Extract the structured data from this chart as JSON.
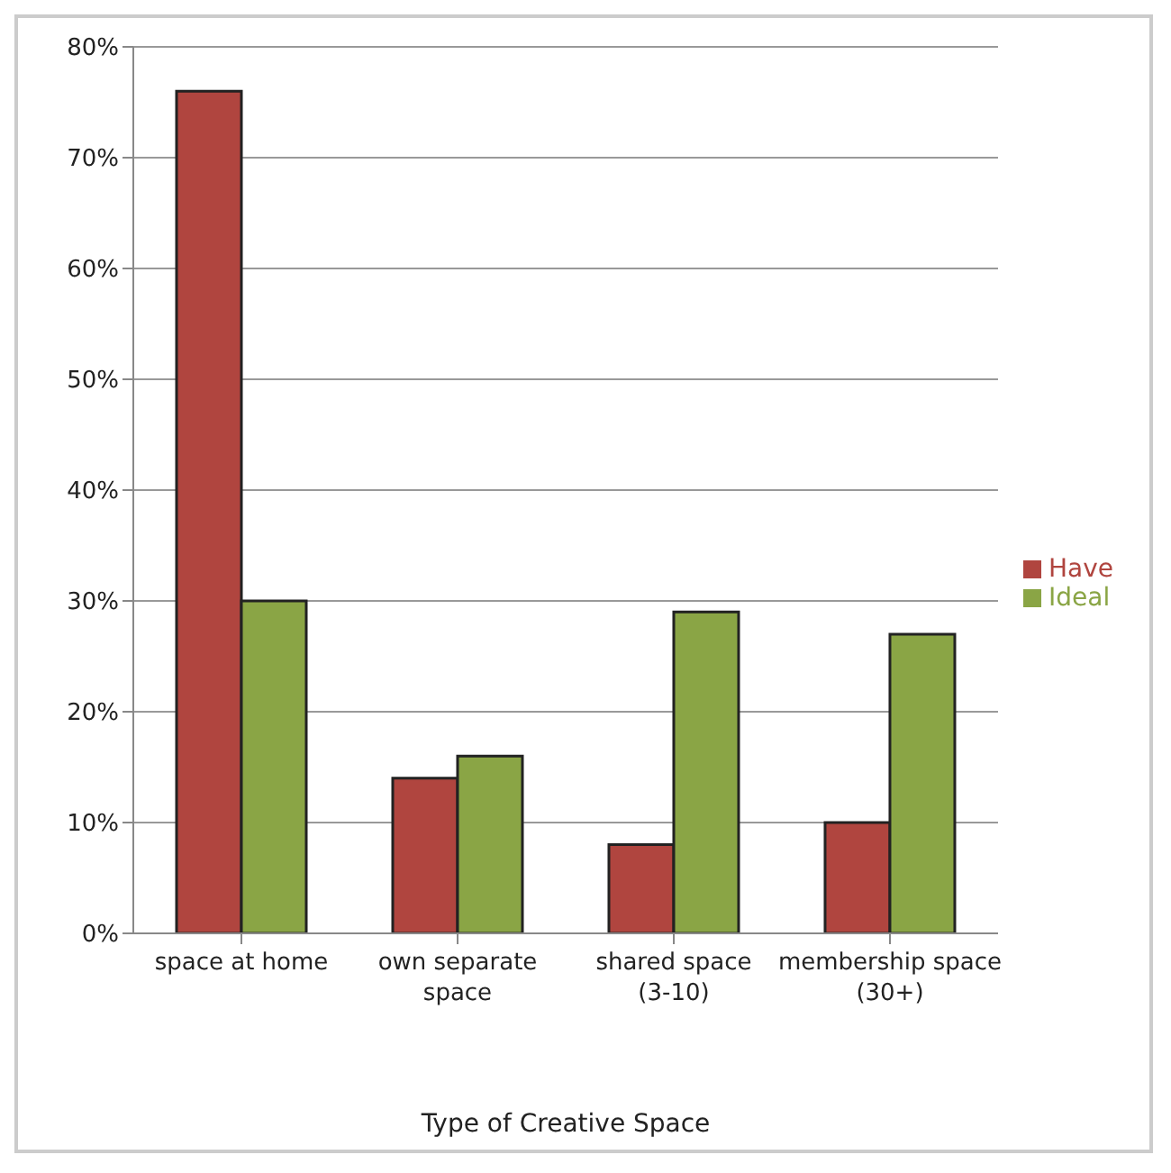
{
  "chart_data": {
    "type": "bar",
    "xlabel": "Type of Creative Space",
    "categories": [
      "space at home",
      "own separate space",
      "shared space (3-10)",
      "membership space (30+)"
    ],
    "series": [
      {
        "name": "Have",
        "color": "#b0453f",
        "values": [
          76,
          14,
          8,
          10
        ]
      },
      {
        "name": "Ideal",
        "color": "#8aa545",
        "values": [
          30,
          16,
          29,
          27
        ]
      }
    ],
    "ylim": [
      0,
      80
    ],
    "yticks": [
      {
        "value": 0,
        "label": "0%"
      },
      {
        "value": 10,
        "label": "10%"
      },
      {
        "value": 20,
        "label": "20%"
      },
      {
        "value": 30,
        "label": "30%"
      },
      {
        "value": 40,
        "label": "40%"
      },
      {
        "value": 50,
        "label": "50%"
      },
      {
        "value": 60,
        "label": "60%"
      },
      {
        "value": 70,
        "label": "70%"
      },
      {
        "value": 80,
        "label": "80%"
      }
    ],
    "grid": "y",
    "legend": "right"
  }
}
